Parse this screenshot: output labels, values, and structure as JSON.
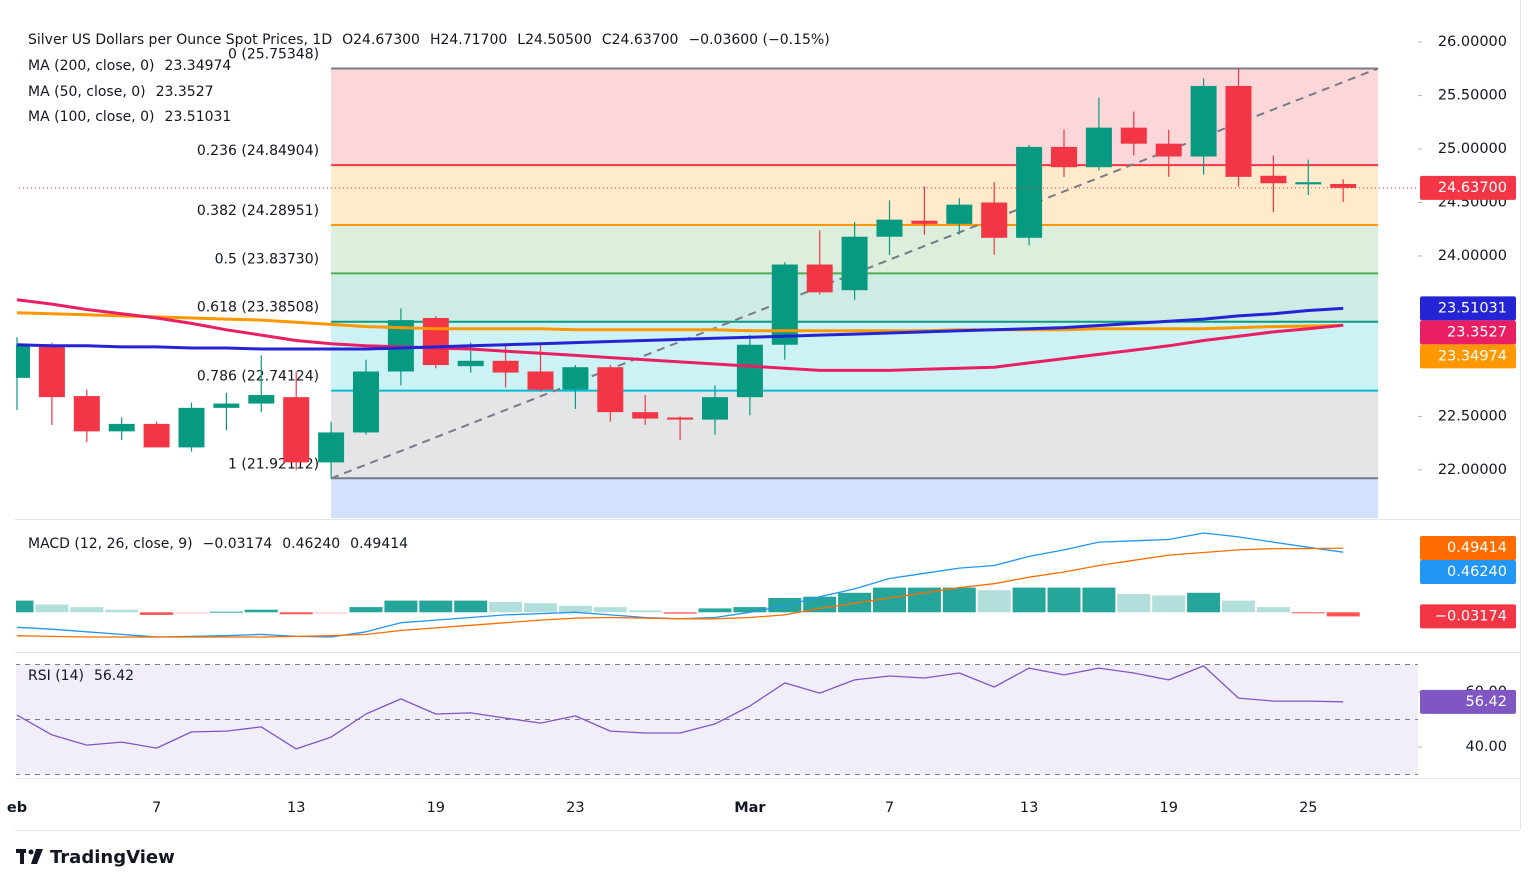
{
  "branding": "TradingView",
  "chart_data": [
    {
      "type": "candlestick",
      "title": "Silver US Dollars per Ounce Spot Prices, 1D",
      "readout": [
        "O24.67300",
        "H24.71700",
        "L24.50500",
        "C24.63700",
        "−0.03600 (−0.15%)"
      ],
      "categories": [
        "eb",
        null,
        null,
        null,
        "7",
        null,
        null,
        null,
        "13",
        null,
        null,
        null,
        "19",
        null,
        null,
        null,
        "23",
        null,
        null,
        null,
        null,
        "Mar",
        null,
        null,
        null,
        "7",
        null,
        null,
        null,
        "13",
        null,
        null,
        null,
        "19",
        null,
        null,
        null,
        "25",
        null
      ],
      "open": [
        22.86,
        23.17,
        22.69,
        22.36,
        22.43,
        22.21,
        22.58,
        22.62,
        22.68,
        22.07,
        22.35,
        22.92,
        23.42,
        22.97,
        23.02,
        22.92,
        22.75,
        22.96,
        22.54,
        22.49,
        22.47,
        22.68,
        23.17,
        23.92,
        23.68,
        24.18,
        24.33,
        24.3,
        24.5,
        24.17,
        25.02,
        24.83,
        25.2,
        25.05,
        24.93,
        25.59,
        24.75,
        24.67,
        24.673
      ],
      "high": [
        23.24,
        23.19,
        22.75,
        22.49,
        22.45,
        22.63,
        22.72,
        23.07,
        22.92,
        22.45,
        23.03,
        23.51,
        23.44,
        23.19,
        23.17,
        23.17,
        22.98,
        22.98,
        22.7,
        22.5,
        22.79,
        23.26,
        23.94,
        24.24,
        24.32,
        24.52,
        24.65,
        24.54,
        24.69,
        25.04,
        25.18,
        25.48,
        25.35,
        25.18,
        25.66,
        25.75348,
        24.94,
        24.9,
        24.717
      ],
      "low": [
        22.56,
        22.42,
        22.26,
        22.28,
        22.21,
        22.17,
        22.37,
        22.54,
        22.0,
        21.92112,
        22.33,
        22.79,
        22.95,
        22.91,
        22.77,
        22.73,
        22.57,
        22.45,
        22.42,
        22.28,
        22.33,
        22.51,
        23.03,
        23.64,
        23.59,
        24.01,
        24.2,
        24.2,
        24.01,
        24.1,
        24.74,
        24.8,
        24.94,
        24.74,
        24.76,
        24.65,
        24.41,
        24.57,
        24.505
      ],
      "close": [
        23.17,
        22.68,
        22.36,
        22.43,
        22.21,
        22.58,
        22.62,
        22.7,
        22.07,
        22.35,
        22.92,
        23.4,
        22.98,
        23.02,
        22.91,
        22.75,
        22.96,
        22.54,
        22.48,
        22.47,
        22.68,
        23.17,
        23.92,
        23.66,
        24.18,
        24.34,
        24.3,
        24.48,
        24.17,
        25.02,
        24.83,
        25.2,
        25.05,
        24.93,
        25.59,
        24.74,
        24.68,
        24.69,
        24.637
      ],
      "up_color": "#089981",
      "down_color": "#f23645",
      "series": [
        {
          "name": "MA (200, close, 0)",
          "color": "#ff9800",
          "values": [
            23.47,
            23.46,
            23.45,
            23.44,
            23.43,
            23.42,
            23.41,
            23.4,
            23.38,
            23.36,
            23.34,
            23.33,
            23.32,
            23.32,
            23.32,
            23.32,
            23.31,
            23.31,
            23.31,
            23.31,
            23.31,
            23.3,
            23.3,
            23.3,
            23.3,
            23.3,
            23.3,
            23.31,
            23.31,
            23.31,
            23.31,
            23.32,
            23.32,
            23.32,
            23.32,
            23.33,
            23.34,
            23.345,
            23.34974
          ]
        },
        {
          "name": "MA (50, close, 0)",
          "color": "#e91e63",
          "values": [
            23.59,
            23.55,
            23.5,
            23.46,
            23.42,
            23.37,
            23.31,
            23.26,
            23.21,
            23.18,
            23.16,
            23.15,
            23.14,
            23.13,
            23.11,
            23.09,
            23.07,
            23.05,
            23.03,
            23.01,
            22.99,
            22.97,
            22.95,
            22.93,
            22.93,
            22.93,
            22.94,
            22.95,
            22.96,
            23.0,
            23.04,
            23.08,
            23.12,
            23.16,
            23.21,
            23.25,
            23.29,
            23.32,
            23.3527
          ]
        },
        {
          "name": "MA (100, close, 0)",
          "color": "#2424d4",
          "values": [
            23.17,
            23.16,
            23.16,
            23.15,
            23.15,
            23.14,
            23.14,
            23.13,
            23.13,
            23.13,
            23.13,
            23.14,
            23.15,
            23.16,
            23.17,
            23.18,
            23.19,
            23.2,
            23.21,
            23.22,
            23.23,
            23.24,
            23.25,
            23.26,
            23.27,
            23.28,
            23.29,
            23.3,
            23.31,
            23.32,
            23.33,
            23.35,
            23.37,
            23.39,
            23.41,
            23.44,
            23.46,
            23.49,
            23.51031
          ]
        }
      ],
      "fib": {
        "below_color": "#2962ff",
        "levels": [
          {
            "label": "0 (25.75348)",
            "value": 25.75348,
            "color": "#787b86"
          },
          {
            "label": "0.236 (24.84904)",
            "value": 24.84904,
            "color": "#f23645"
          },
          {
            "label": "0.382 (24.28951)",
            "value": 24.28951,
            "color": "#ff9800"
          },
          {
            "label": "0.5 (23.83730)",
            "value": 23.8373,
            "color": "#4caf50"
          },
          {
            "label": "0.618 (23.38508)",
            "value": 23.38508,
            "color": "#089981"
          },
          {
            "label": "0.786 (22.74124)",
            "value": 22.74124,
            "color": "#00bcd4"
          },
          {
            "label": "1 (21.92112)",
            "value": 21.92112,
            "color": "#787b86"
          }
        ]
      },
      "price_line": {
        "value": 24.637,
        "label": "24.63700"
      },
      "ylim": [
        21.55,
        26.3
      ],
      "yticks": [
        {
          "value": 22,
          "label": "22.00000"
        },
        {
          "value": 22.5,
          "label": "22.50000"
        },
        {
          "value": 24,
          "label": "24.00000"
        },
        {
          "value": 24.5,
          "label": "24.50000"
        },
        {
          "value": 25,
          "label": "25.00000"
        },
        {
          "value": 25.5,
          "label": "25.50000"
        },
        {
          "value": 26,
          "label": "26.00000"
        }
      ]
    },
    {
      "type": "macd",
      "title": "MACD (12, 26, close, 9)",
      "histogram": [
        0.09,
        0.06,
        0.04,
        0.02,
        -0.02,
        -0.01,
        0.005,
        0.02,
        -0.015,
        -0.01,
        0.04,
        0.09,
        0.09,
        0.09,
        0.08,
        0.07,
        0.05,
        0.04,
        0.015,
        -0.01,
        0.03,
        0.04,
        0.11,
        0.12,
        0.15,
        0.19,
        0.19,
        0.19,
        0.17,
        0.19,
        0.19,
        0.19,
        0.14,
        0.13,
        0.15,
        0.09,
        0.04,
        -0.005,
        -0.03174
      ],
      "macd": [
        -0.115,
        -0.13,
        -0.15,
        -0.17,
        -0.19,
        -0.185,
        -0.18,
        -0.17,
        -0.185,
        -0.19,
        -0.15,
        -0.08,
        -0.06,
        -0.04,
        -0.02,
        -0.01,
        0.0,
        -0.02,
        -0.04,
        -0.05,
        -0.04,
        0.0,
        0.05,
        0.12,
        0.18,
        0.26,
        0.3,
        0.34,
        0.36,
        0.43,
        0.48,
        0.54,
        0.55,
        0.56,
        0.61,
        0.58,
        0.54,
        0.5,
        0.4624
      ],
      "signal": [
        -0.18,
        -0.185,
        -0.19,
        -0.19,
        -0.19,
        -0.19,
        -0.19,
        -0.19,
        -0.185,
        -0.18,
        -0.17,
        -0.14,
        -0.12,
        -0.1,
        -0.08,
        -0.06,
        -0.045,
        -0.04,
        -0.045,
        -0.05,
        -0.05,
        -0.04,
        -0.02,
        0.03,
        0.07,
        0.11,
        0.15,
        0.19,
        0.22,
        0.27,
        0.31,
        0.36,
        0.4,
        0.44,
        0.46,
        0.48,
        0.49,
        0.49,
        0.49414
      ],
      "macd_color": "#2196f3",
      "signal_color": "#ff6d00",
      "histogram_colors": [
        "#26a69a",
        "#b2dfdb",
        "#ffcdd2",
        "#ff5252"
      ],
      "readout": [
        {
          "value": -0.03174,
          "label": "−0.03174",
          "color": "#f23645"
        },
        {
          "value": 0.4624,
          "label": "0.46240",
          "color": "#2196f3"
        },
        {
          "value": 0.49414,
          "label": "0.49414",
          "color": "#ff6d00"
        }
      ],
      "ylim": [
        -0.29,
        0.71
      ]
    },
    {
      "type": "line",
      "title": "RSI (14)",
      "series": [
        {
          "color": "#7e57c2",
          "values": [
            51.6,
            44.4,
            40.7,
            41.8,
            39.6,
            45.5,
            45.8,
            47.3,
            39.3,
            43.6,
            52,
            57.5,
            52,
            52.4,
            50.5,
            48.7,
            51.3,
            45.8,
            45.1,
            45.1,
            48.4,
            54.9,
            63.3,
            59.6,
            64.4,
            65.8,
            65.1,
            66.9,
            61.8,
            68.7,
            66.2,
            68.7,
            66.9,
            64.4,
            69.5,
            57.8,
            56.7,
            56.7,
            56.42
          ]
        }
      ],
      "levels": [
        70,
        50,
        30
      ],
      "ylim": [
        29.1,
        73.45
      ],
      "yticks": [
        {
          "value": 40,
          "label": "40.00"
        },
        {
          "value": 60,
          "label": "60.00"
        }
      ]
    }
  ]
}
